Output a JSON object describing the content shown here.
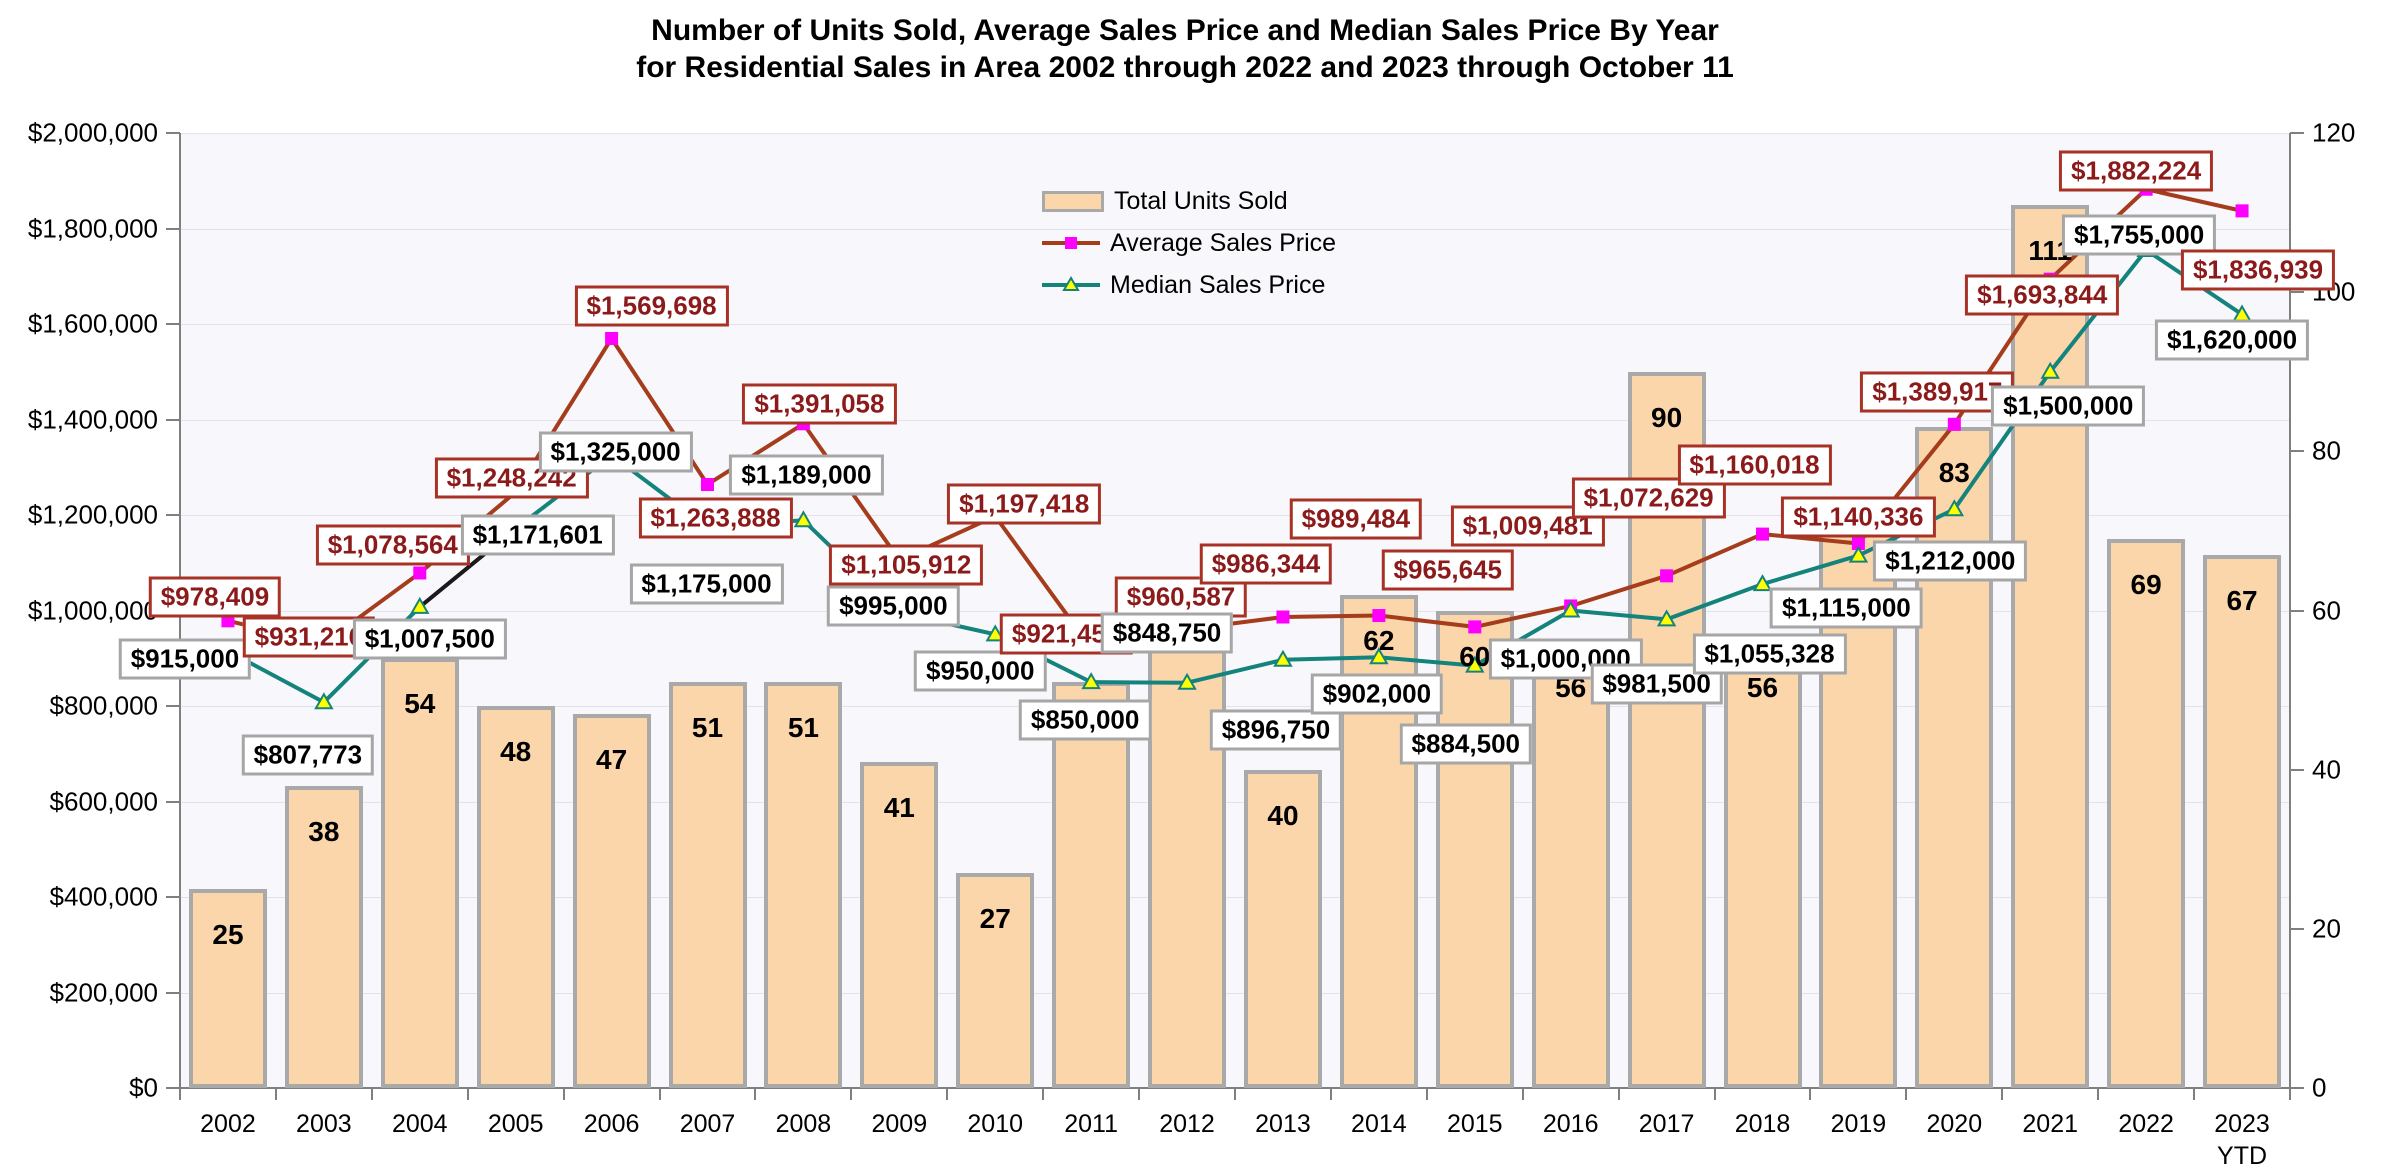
{
  "title": {
    "line1": "Number of Units Sold, Average Sales Price and Median Sales Price By Year",
    "line2": "for Residential Sales in Area 2002 through 2022 and 2023 through October 11"
  },
  "legend": {
    "items": [
      {
        "label": "Total Units Sold"
      },
      {
        "label": "Average Sales Price"
      },
      {
        "label": "Median Sales Price"
      }
    ]
  },
  "axes": {
    "left_tick_labels": [
      "$0",
      "$200,000",
      "$400,000",
      "$600,000",
      "$800,000",
      "$1,000,000",
      "$1,200,000",
      "$1,400,000",
      "$1,600,000",
      "$1,800,000",
      "$2,000,000"
    ],
    "right_tick_labels": [
      "0",
      "20",
      "40",
      "60",
      "80",
      "100",
      "120"
    ],
    "x_tick_labels": [
      "2002",
      "2003",
      "2004",
      "2005",
      "2006",
      "2007",
      "2008",
      "2009",
      "2010",
      "2011",
      "2012",
      "2013",
      "2014",
      "2015",
      "2016",
      "2017",
      "2018",
      "2019",
      "2020",
      "2021",
      "2022",
      "2023"
    ],
    "x_last_sub_label": "YTD"
  },
  "colors": {
    "page_bg": "#FFFFFF",
    "plot_bg": "#F8F7FB",
    "gridline": "#E4E2ED",
    "axis": "#7F7F7F",
    "bar_fill": "#FBD6AB",
    "bar_border": "#A9A9A9",
    "avg_line": "#A53C1B",
    "avg_marker": "#FF00FF",
    "avg_label_text": "#8C1A1A",
    "avg_label_border": "#A93226",
    "median_line": "#13837C",
    "median_marker_fill": "#FFFF00",
    "median_label_text": "#000000",
    "median_label_border": "#A6A6A6"
  },
  "chart_data": {
    "type": "combo",
    "categories": [
      "2002",
      "2003",
      "2004",
      "2005",
      "2006",
      "2007",
      "2008",
      "2009",
      "2010",
      "2011",
      "2012",
      "2013",
      "2014",
      "2015",
      "2016",
      "2017",
      "2018",
      "2019",
      "2020",
      "2021",
      "2022",
      "2023 YTD"
    ],
    "ylim_left": [
      0,
      2000000
    ],
    "ylim_right": [
      0,
      120
    ],
    "grid": "horizontal",
    "legend_position": "top-center-inside",
    "series": [
      {
        "name": "Total Units Sold",
        "type": "bar",
        "axis": "right",
        "values": [
          25,
          38,
          54,
          48,
          47,
          51,
          51,
          41,
          27,
          51,
          60,
          40,
          62,
          60,
          56,
          90,
          56,
          70,
          83,
          111,
          69,
          67
        ],
        "hidden_value_indices": [
          10,
          17
        ]
      },
      {
        "name": "Average Sales Price",
        "type": "line",
        "axis": "left",
        "marker": "square",
        "values": [
          978409,
          931216,
          1078564,
          1248242,
          1569698,
          1263888,
          1391058,
          1105912,
          1197418,
          921452,
          960587,
          986344,
          989484,
          965645,
          1009481,
          1072629,
          1160018,
          1140336,
          1389917,
          1693844,
          1882224,
          1836939
        ],
        "labels": [
          "$978,409",
          "$931,216",
          "$1,078,564",
          "$1,248,242",
          "$1,569,698",
          "$1,263,888",
          "$1,391,058",
          "$1,105,912",
          "$1,197,418",
          "$921,452",
          "$960,587",
          "$986,344",
          "$989,484",
          "$965,645",
          "$1,009,481",
          "$1,072,629",
          "$1,160,018",
          "$1,140,336",
          "$1,389,917",
          "$1,693,844",
          "$1,882,224",
          "$1,836,939"
        ],
        "label_offsets": [
          [
            -13,
            -24
          ],
          [
            -15,
            -6
          ],
          [
            -27,
            -28
          ],
          [
            -4,
            -14
          ],
          [
            40,
            -32
          ],
          [
            8,
            34
          ],
          [
            16,
            -20
          ],
          [
            7,
            5
          ],
          [
            29,
            -12
          ],
          [
            -25,
            -14
          ],
          [
            -6,
            -32
          ],
          [
            -17,
            -53
          ],
          [
            -23,
            -97
          ],
          [
            -27,
            -57
          ],
          [
            -43,
            -80
          ],
          [
            -18,
            -78
          ],
          [
            -8,
            -69
          ],
          [
            0,
            -26
          ],
          [
            -17,
            -32
          ],
          [
            -8,
            16
          ],
          [
            -10,
            -18
          ],
          [
            16,
            59
          ]
        ]
      },
      {
        "name": "Median Sales Price",
        "type": "line",
        "axis": "left",
        "marker": "triangle",
        "values": [
          915000,
          807773,
          1007500,
          1171601,
          1325000,
          1175000,
          1189000,
          995000,
          950000,
          850000,
          848750,
          896750,
          902000,
          884500,
          1000000,
          981500,
          1055328,
          1115000,
          1212000,
          1500000,
          1755000,
          1620000
        ],
        "labels": [
          "$915,000",
          "$807,773",
          "$1,007,500",
          "$1,171,601",
          "$1,325,000",
          "$1,175,000",
          "$1,189,000",
          "$995,000",
          "$950,000",
          "$850,000",
          "$848,750",
          "$896,750",
          "$902,000",
          "$884,500",
          "$1,000,000",
          "$981,500",
          "$1,055,328",
          "$1,115,000",
          "$1,212,000",
          "$1,500,000",
          "$1,755,000",
          "$1,620,000"
        ],
        "label_offsets": [
          [
            -43,
            8
          ],
          [
            -16,
            53
          ],
          [
            10,
            32
          ],
          [
            22,
            6
          ],
          [
            4,
            -3
          ],
          [
            -1,
            57
          ],
          [
            3,
            -45
          ],
          [
            -6,
            -7
          ],
          [
            -15,
            37
          ],
          [
            -6,
            38
          ],
          [
            -20,
            -50
          ],
          [
            -7,
            70
          ],
          [
            -2,
            37
          ],
          [
            -9,
            78
          ],
          [
            -5,
            48
          ],
          [
            -10,
            65
          ],
          [
            7,
            70
          ],
          [
            -12,
            52
          ],
          [
            -4,
            52
          ],
          [
            18,
            34
          ],
          [
            -7,
            -15
          ],
          [
            -10,
            26
          ]
        ],
        "segment_color_overrides": {
          "2": "#1A1A1A"
        }
      }
    ]
  }
}
